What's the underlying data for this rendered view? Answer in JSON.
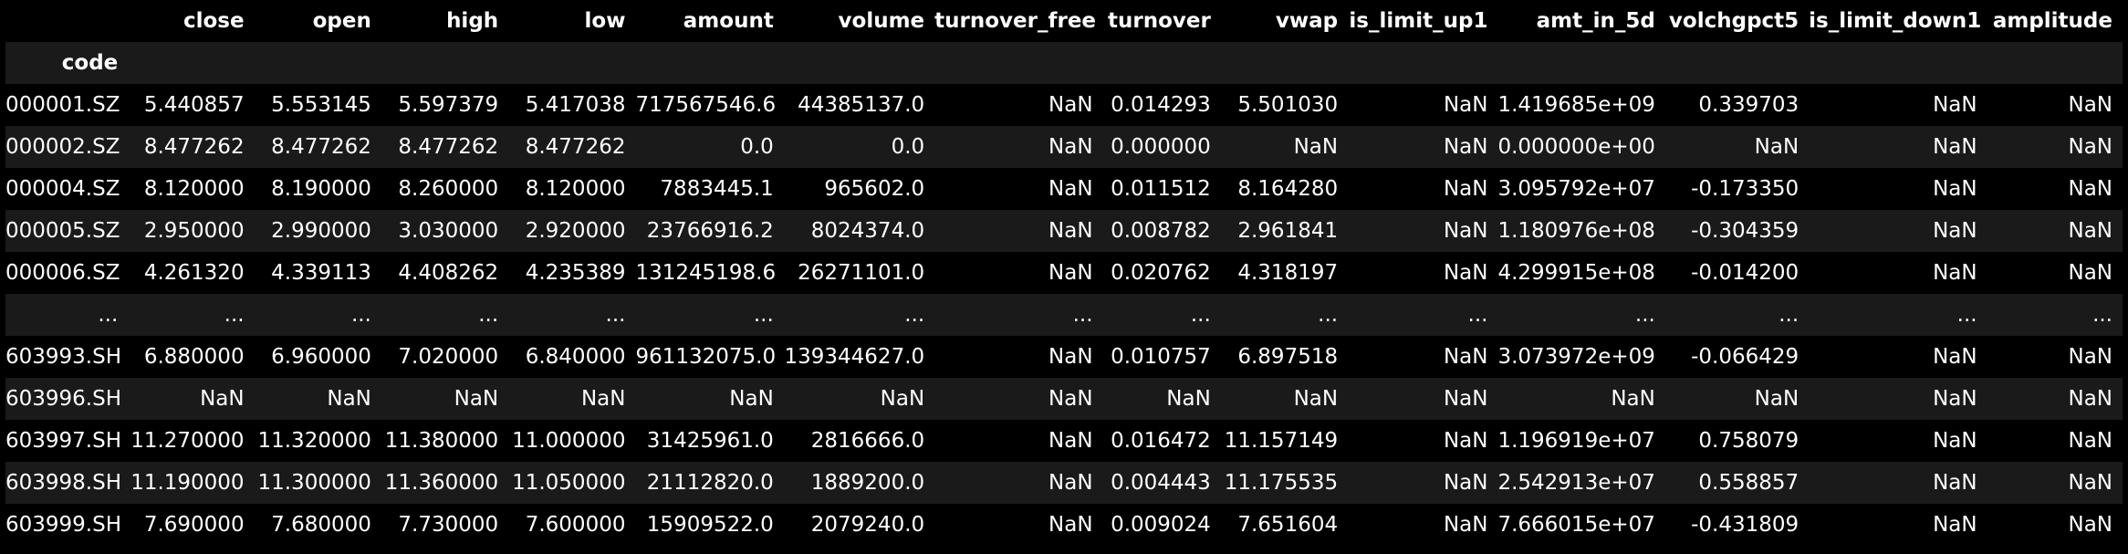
{
  "table": {
    "index_name": "code",
    "columns": [
      "close",
      "open",
      "high",
      "low",
      "amount",
      "volume",
      "turnover_free",
      "turnover",
      "vwap",
      "is_limit_up1",
      "amt_in_5d",
      "volchgpct5",
      "is_limit_down1",
      "amplitude"
    ],
    "rows": [
      {
        "index": "000001.SZ",
        "cells": [
          "5.440857",
          "5.553145",
          "5.597379",
          "5.417038",
          "717567546.6",
          "44385137.0",
          "NaN",
          "0.014293",
          "5.501030",
          "NaN",
          "1.419685e+09",
          "0.339703",
          "NaN",
          "NaN"
        ]
      },
      {
        "index": "000002.SZ",
        "cells": [
          "8.477262",
          "8.477262",
          "8.477262",
          "8.477262",
          "0.0",
          "0.0",
          "NaN",
          "0.000000",
          "NaN",
          "NaN",
          "0.000000e+00",
          "NaN",
          "NaN",
          "NaN"
        ]
      },
      {
        "index": "000004.SZ",
        "cells": [
          "8.120000",
          "8.190000",
          "8.260000",
          "8.120000",
          "7883445.1",
          "965602.0",
          "NaN",
          "0.011512",
          "8.164280",
          "NaN",
          "3.095792e+07",
          "-0.173350",
          "NaN",
          "NaN"
        ]
      },
      {
        "index": "000005.SZ",
        "cells": [
          "2.950000",
          "2.990000",
          "3.030000",
          "2.920000",
          "23766916.2",
          "8024374.0",
          "NaN",
          "0.008782",
          "2.961841",
          "NaN",
          "1.180976e+08",
          "-0.304359",
          "NaN",
          "NaN"
        ]
      },
      {
        "index": "000006.SZ",
        "cells": [
          "4.261320",
          "4.339113",
          "4.408262",
          "4.235389",
          "131245198.6",
          "26271101.0",
          "NaN",
          "0.020762",
          "4.318197",
          "NaN",
          "4.299915e+08",
          "-0.014200",
          "NaN",
          "NaN"
        ]
      },
      {
        "index": "...",
        "cells": [
          "...",
          "...",
          "...",
          "...",
          "...",
          "...",
          "...",
          "...",
          "...",
          "...",
          "...",
          "...",
          "...",
          "..."
        ]
      },
      {
        "index": "603993.SH",
        "cells": [
          "6.880000",
          "6.960000",
          "7.020000",
          "6.840000",
          "961132075.0",
          "139344627.0",
          "NaN",
          "0.010757",
          "6.897518",
          "NaN",
          "3.073972e+09",
          "-0.066429",
          "NaN",
          "NaN"
        ]
      },
      {
        "index": "603996.SH",
        "cells": [
          "NaN",
          "NaN",
          "NaN",
          "NaN",
          "NaN",
          "NaN",
          "NaN",
          "NaN",
          "NaN",
          "NaN",
          "NaN",
          "NaN",
          "NaN",
          "NaN"
        ]
      },
      {
        "index": "603997.SH",
        "cells": [
          "11.270000",
          "11.320000",
          "11.380000",
          "11.000000",
          "31425961.0",
          "2816666.0",
          "NaN",
          "0.016472",
          "11.157149",
          "NaN",
          "1.196919e+07",
          "0.758079",
          "NaN",
          "NaN"
        ]
      },
      {
        "index": "603998.SH",
        "cells": [
          "11.190000",
          "11.300000",
          "11.360000",
          "11.050000",
          "21112820.0",
          "1889200.0",
          "NaN",
          "0.004443",
          "11.175535",
          "NaN",
          "2.542913e+07",
          "0.558857",
          "NaN",
          "NaN"
        ]
      },
      {
        "index": "603999.SH",
        "cells": [
          "7.690000",
          "7.680000",
          "7.730000",
          "7.600000",
          "15909522.0",
          "2079240.0",
          "NaN",
          "0.009024",
          "7.651604",
          "NaN",
          "7.666015e+07",
          "-0.431809",
          "NaN",
          "NaN"
        ]
      }
    ]
  }
}
